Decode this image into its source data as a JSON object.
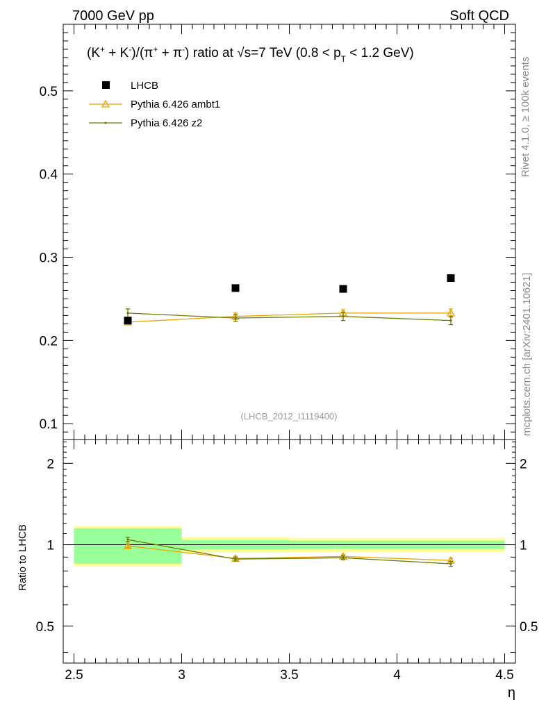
{
  "header": {
    "left": "7000 GeV pp",
    "right": "Soft QCD"
  },
  "side_labels": {
    "rivet": "Rivet 4.1.0, ≥ 100k events",
    "mcplots": "mcplots.cern.ch [arXiv:2401.10621]"
  },
  "chart_data": {
    "type": "scatter",
    "title": {
      "p1": "(K",
      "sup_plus": "+",
      "p2": " + K",
      "sup_minus": "-",
      "p3": ")/(π",
      "sup_plus2": "+",
      "p4": " + π",
      "sup_minus2": "-",
      "p5": ") ratio at ",
      "sqrt_sym": "√",
      "p6": "s=7 TeV (0.8 < p",
      "sub_t": "T",
      "p7": " < 1.2 GeV)"
    },
    "analysis_id": "(LHCB_2012_I1119400)",
    "xlabel": "η",
    "ylabel_ratio": "Ratio to LHCB",
    "xlim": [
      2.45,
      4.55
    ],
    "ylim": [
      0.081,
      0.58
    ],
    "ratio_ylim": [
      0.365,
      2.45
    ],
    "x_ticks": [
      "2.5",
      "3",
      "3.5",
      "4",
      "4.5"
    ],
    "y_ticks": [
      "0.1",
      "0.2",
      "0.3",
      "0.4",
      "0.5"
    ],
    "ratio_ticks": [
      "0.5",
      "1",
      "2"
    ],
    "bins": [
      [
        2.5,
        3.0
      ],
      [
        3.0,
        3.5
      ],
      [
        3.5,
        4.0
      ],
      [
        4.0,
        4.5
      ]
    ],
    "x": [
      2.75,
      3.25,
      3.75,
      4.25
    ],
    "legend": {
      "position": "top-left"
    },
    "series": [
      {
        "name": "LHCB",
        "marker": "square",
        "color": "#000000",
        "values": [
          0.224,
          0.263,
          0.262,
          0.275
        ],
        "errors": [
          0.003,
          0.003,
          0.003,
          0.003
        ],
        "band_inner": [
          0.15,
          0.04,
          0.035,
          0.035
        ],
        "band_outer": [
          0.17,
          0.065,
          0.06,
          0.06
        ]
      },
      {
        "name": "Pythia 6.426 ambt1",
        "marker": "triangle",
        "color": "#E8A400",
        "values": [
          0.222,
          0.229,
          0.233,
          0.233
        ],
        "errors": [
          0.003,
          0.004,
          0.004,
          0.005
        ],
        "ratio": [
          0.99,
          0.89,
          0.905,
          0.875
        ],
        "ratio_err": [
          0.015,
          0.015,
          0.015,
          0.018
        ]
      },
      {
        "name": "Pythia 6.426 z2",
        "marker": "dot",
        "color": "#6B7A00",
        "values": [
          0.233,
          0.227,
          0.229,
          0.224
        ],
        "errors": [
          0.005,
          0.004,
          0.005,
          0.005
        ],
        "ratio": [
          1.045,
          0.885,
          0.895,
          0.85
        ],
        "ratio_err": [
          0.02,
          0.015,
          0.015,
          0.018
        ]
      }
    ]
  }
}
